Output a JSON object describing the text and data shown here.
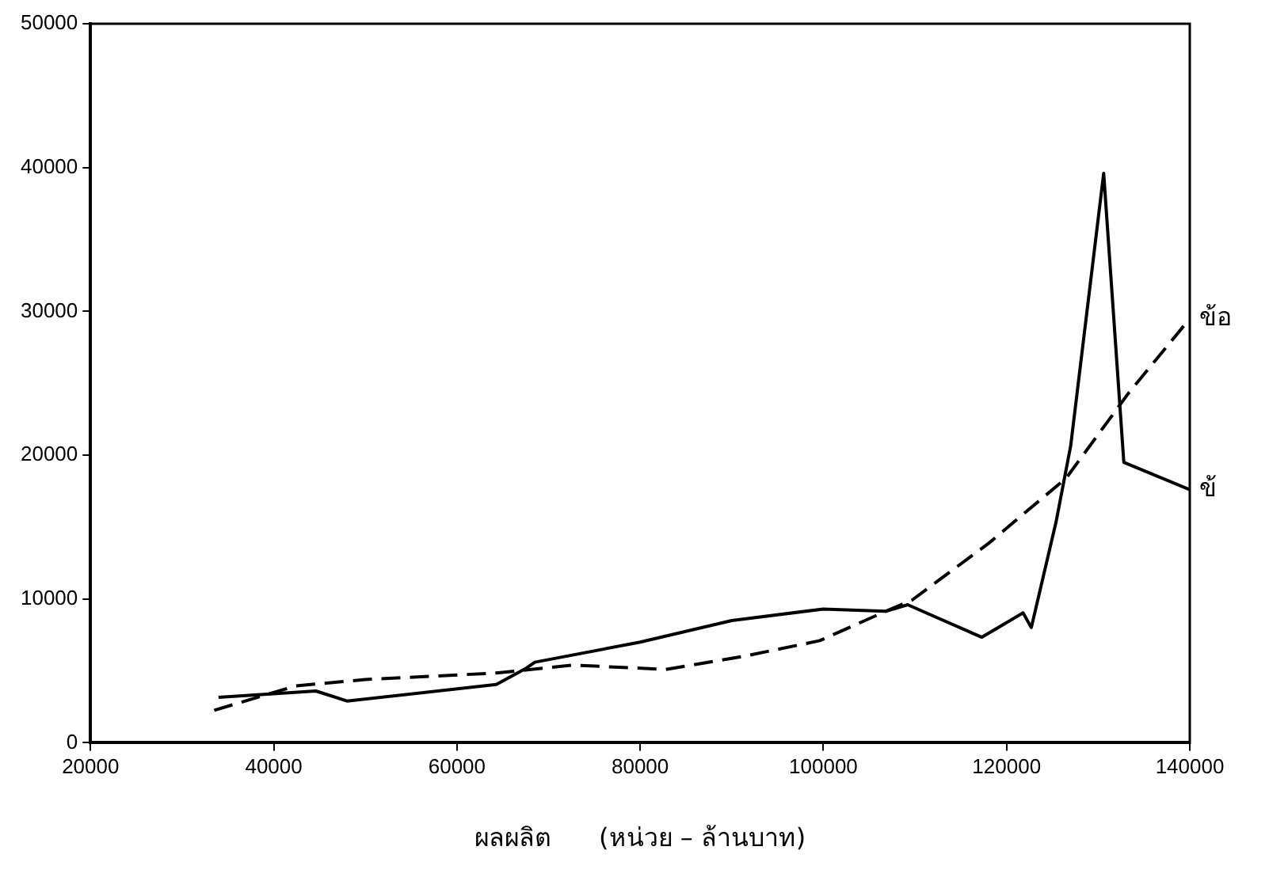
{
  "chart_data": {
    "type": "line",
    "xlabel": "ผลผลิต      (หน่วย – ล้านบาท)",
    "xlim": [
      20000,
      140000
    ],
    "xticks": [
      20000,
      40000,
      60000,
      80000,
      100000,
      120000,
      140000
    ],
    "ylim": [
      0,
      50000
    ],
    "yticks": [
      0,
      10000,
      20000,
      30000,
      40000,
      50000
    ],
    "grid": false,
    "legend": false,
    "marker": "none",
    "series": [
      {
        "name": "ข้",
        "color": "#000000",
        "line_style": "solid",
        "x": [
          33970,
          44600,
          48000,
          64300,
          67600,
          68500,
          80000,
          90000,
          100000,
          106800,
          109200,
          117300,
          121800,
          122700,
          125400,
          127000,
          130600,
          132800,
          140000
        ],
        "values": [
          3160,
          3600,
          2900,
          4060,
          5200,
          5600,
          7000,
          8500,
          9300,
          9140,
          9600,
          7340,
          9030,
          8010,
          15350,
          20650,
          39600,
          19500,
          17600
        ]
      },
      {
        "name": "ข้อ",
        "color": "#000000",
        "line_style": "dashed",
        "x": [
          33500,
          42400,
          50000,
          64300,
          72700,
          82800,
          91200,
          99600,
          106800,
          109700,
          118100,
          126500,
          133300,
          140000
        ],
        "values": [
          2260,
          3950,
          4400,
          4850,
          5400,
          5100,
          6000,
          7100,
          9140,
          9930,
          13900,
          18400,
          24300,
          29500
        ]
      }
    ]
  }
}
